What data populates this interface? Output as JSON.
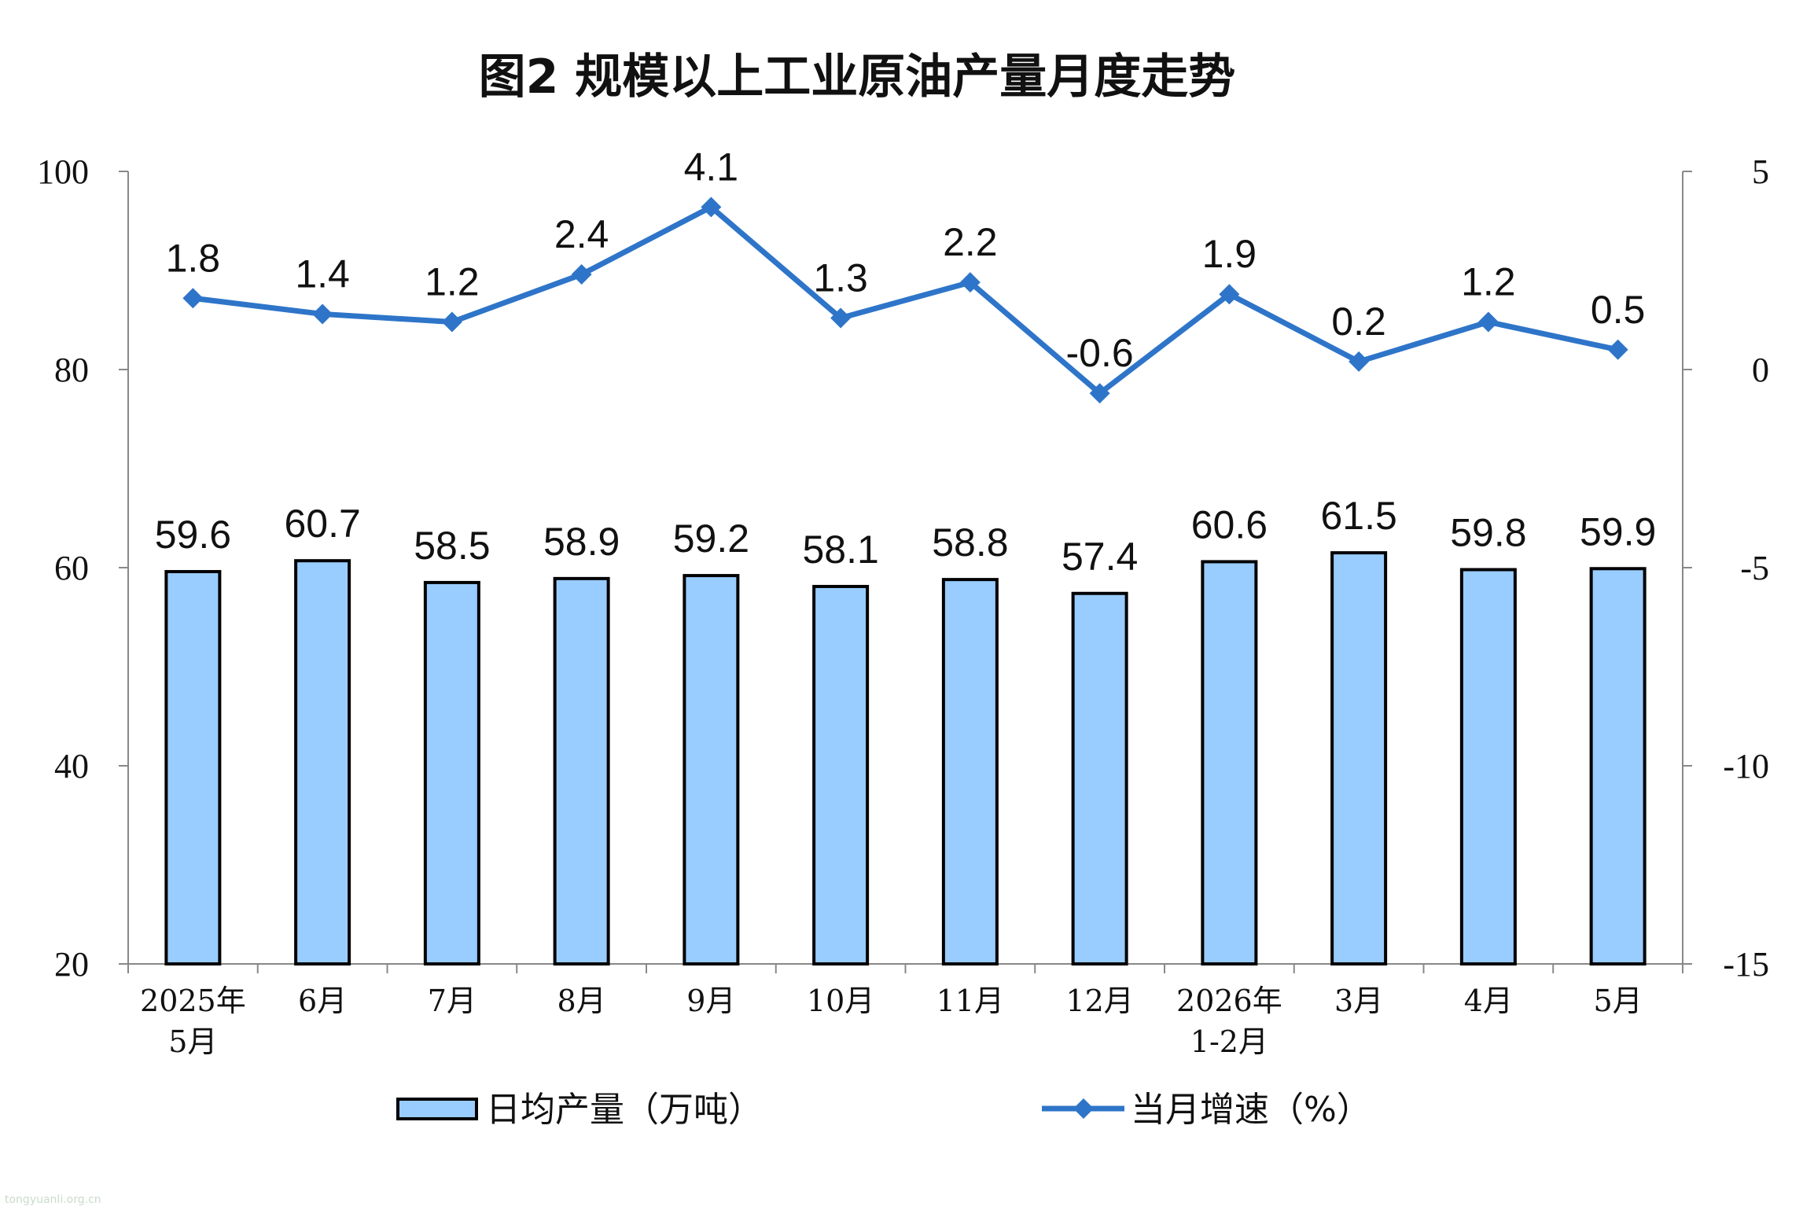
{
  "chart_data": {
    "type": "bar+line",
    "title": "图2  规模以上工业原油产量月度走势",
    "categories": [
      [
        "2025年",
        "5月"
      ],
      [
        "6月"
      ],
      [
        "7月"
      ],
      [
        "8月"
      ],
      [
        "9月"
      ],
      [
        "10月"
      ],
      [
        "11月"
      ],
      [
        "12月"
      ],
      [
        "2026年",
        "1-2月"
      ],
      [
        "3月"
      ],
      [
        "4月"
      ],
      [
        "5月"
      ]
    ],
    "series": [
      {
        "name": "日均产量（万吨）",
        "type": "bar",
        "axis": "left",
        "color": "#99ccff",
        "values": [
          59.6,
          60.7,
          58.5,
          58.9,
          59.2,
          58.1,
          58.8,
          57.4,
          60.6,
          61.5,
          59.8,
          59.9
        ]
      },
      {
        "name": "当月增速（%）",
        "type": "line",
        "axis": "right",
        "color": "#2e75c9",
        "marker": "diamond",
        "values": [
          1.8,
          1.4,
          1.2,
          2.4,
          4.1,
          1.3,
          2.2,
          -0.6,
          1.9,
          0.2,
          1.2,
          0.5
        ]
      }
    ],
    "yleft": {
      "min": 20,
      "max": 100,
      "ticks": [
        20,
        40,
        60,
        80,
        100
      ]
    },
    "yright": {
      "min": -15,
      "max": 5,
      "ticks": [
        -15,
        -10,
        -5,
        0,
        5
      ]
    },
    "legend_position": "bottom"
  },
  "watermark": "tongyuanli.org.cn"
}
